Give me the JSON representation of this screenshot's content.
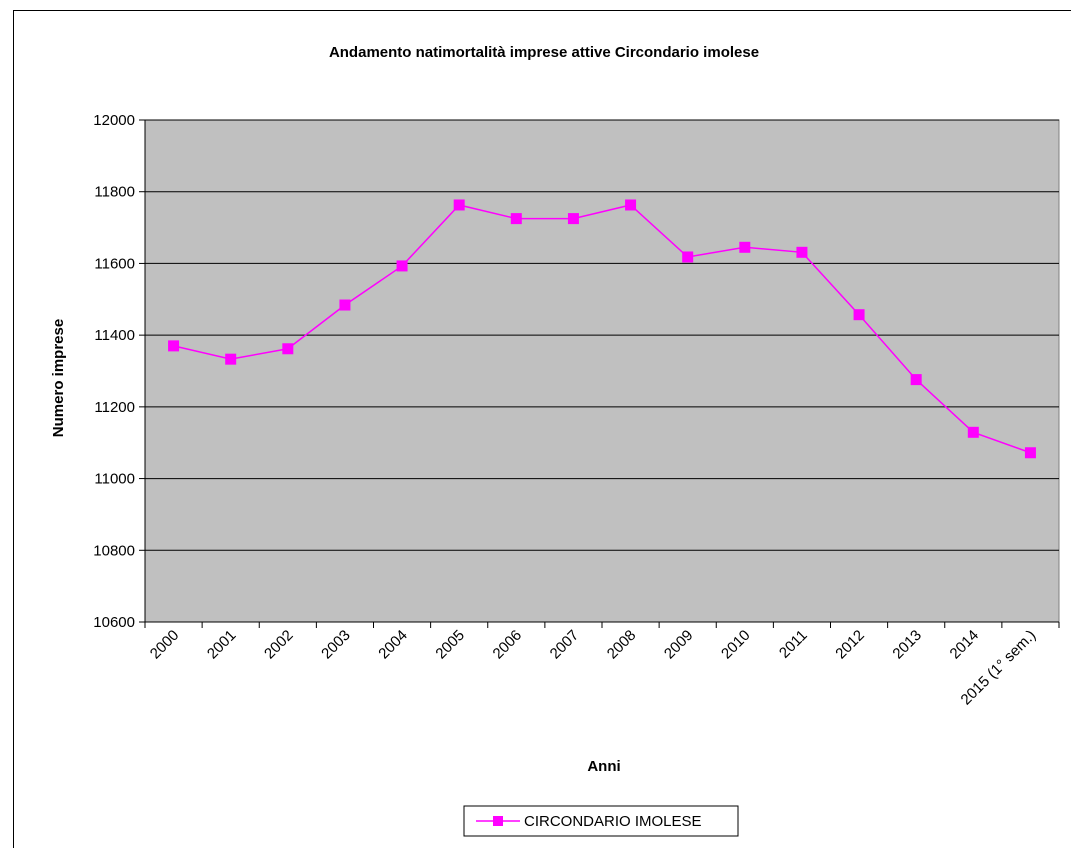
{
  "chart_data": {
    "type": "line",
    "title": "Andamento natimortalità imprese attive Circondario imolese",
    "xlabel": "Anni",
    "ylabel": "Numero imprese",
    "ylim": [
      10600,
      12000
    ],
    "yticks": [
      10600,
      10800,
      11000,
      11200,
      11400,
      11600,
      11800,
      12000
    ],
    "grid": "horizontal",
    "legend": "bottom",
    "categories": [
      "2000",
      "2001",
      "2002",
      "2003",
      "2004",
      "2005",
      "2006",
      "2007",
      "2008",
      "2009",
      "2010",
      "2011",
      "2012",
      "2013",
      "2014",
      "2015 (1° sem.)"
    ],
    "series": [
      {
        "name": "CIRCONDARIO IMOLESE",
        "color": "#ff00ff",
        "values": [
          11370,
          11333,
          11362,
          11484,
          11593,
          11763,
          11725,
          11725,
          11763,
          11618,
          11645,
          11631,
          11457,
          11276,
          11129,
          11072
        ]
      }
    ],
    "plot_background": "#c0c0c0"
  }
}
